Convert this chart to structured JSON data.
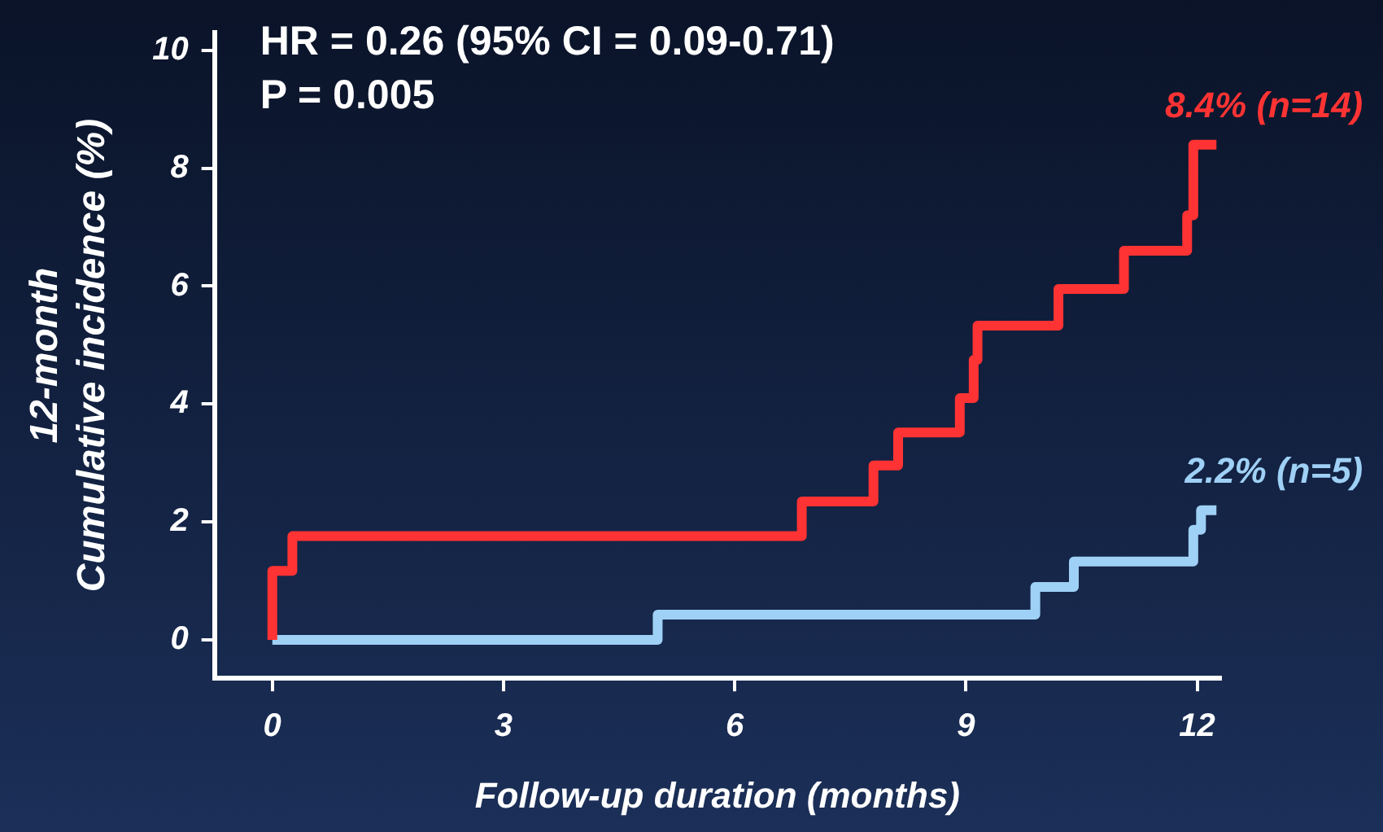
{
  "chart_data": {
    "type": "step",
    "xlabel": "Follow-up duration (months)",
    "ylabel": "12-month\nCumulative incidence (%)",
    "annotations": [
      "HR = 0.26 (95% CI = 0.09-0.71)",
      "P = 0.005"
    ],
    "series": [
      {
        "name": "8.4% (n=14)",
        "color": "#ff3333",
        "x": [
          0,
          0,
          0.26,
          6.87,
          7.8,
          8.12,
          8.92,
          9.1,
          9.15,
          10.2,
          11.05,
          11.87,
          11.95,
          12.25
        ],
        "values": [
          0,
          1.17,
          1.76,
          2.35,
          2.96,
          3.52,
          4.1,
          4.75,
          5.33,
          5.95,
          6.6,
          7.2,
          8.4,
          8.4
        ]
      },
      {
        "name": "2.2% (n=5)",
        "color": "#9fd0f5",
        "x": [
          0,
          5.0,
          9.9,
          10.4,
          11.95,
          12.05,
          12.25
        ],
        "values": [
          0,
          0.43,
          0.9,
          1.33,
          1.87,
          2.2,
          2.2
        ]
      }
    ],
    "xlim": [
      -0.75,
      12.3
    ],
    "xticks": [
      0,
      3,
      6,
      9,
      12
    ],
    "ylim": [
      -0.65,
      10.3
    ],
    "yticks": [
      0,
      2,
      4,
      6,
      8,
      10
    ],
    "grid": false,
    "legend": false,
    "marker": "none",
    "line_style": "solid"
  }
}
